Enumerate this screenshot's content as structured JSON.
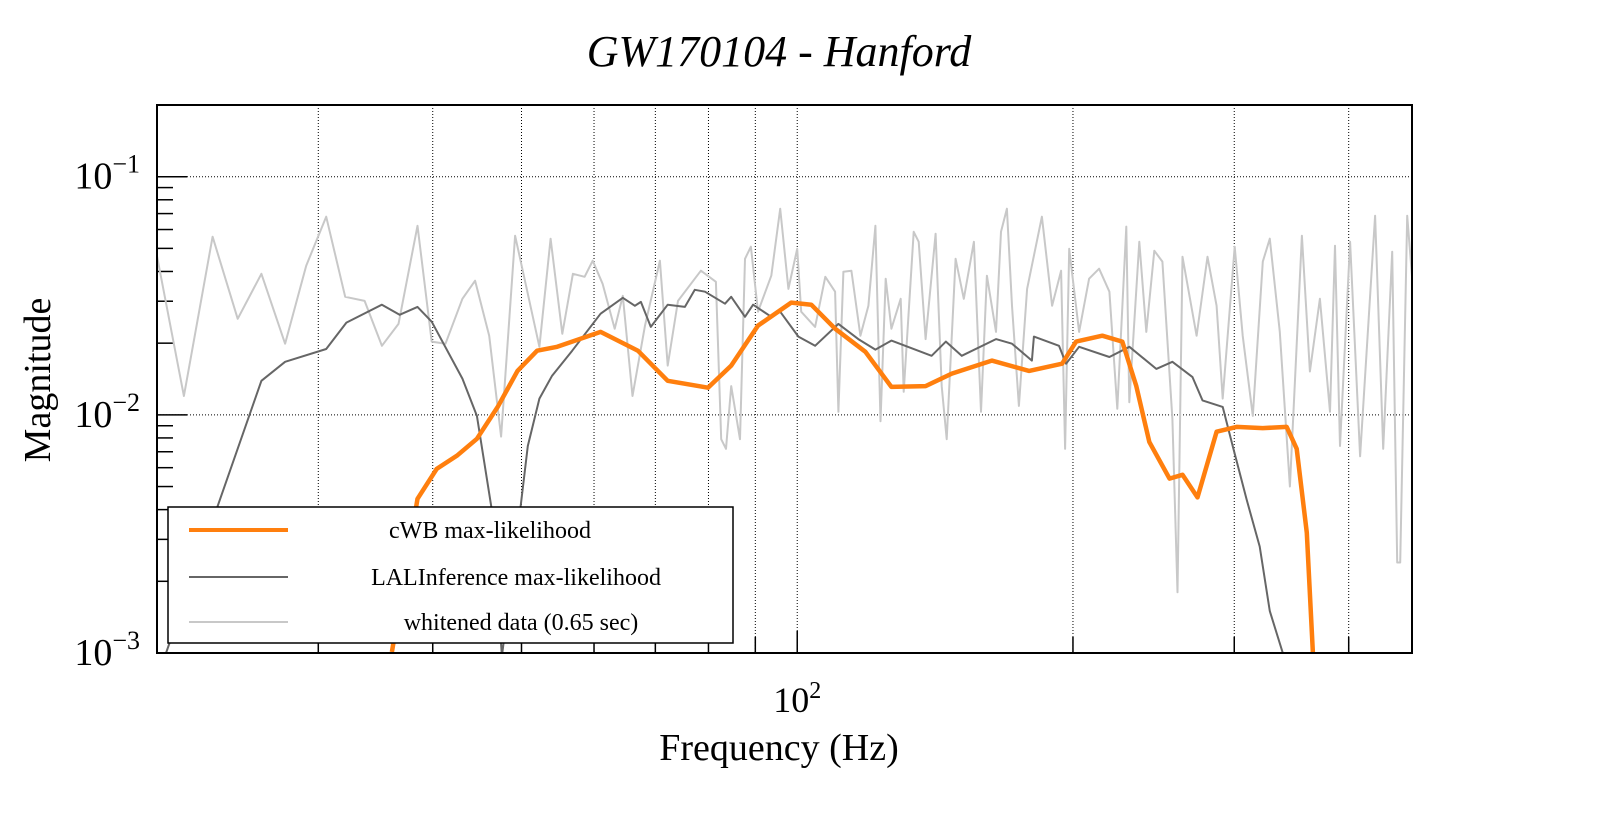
{
  "chart_data": {
    "type": "line",
    "title": "GW170104 - Hanford",
    "xlabel": "Frequency (Hz)",
    "ylabel": "Magnitude",
    "xscale": "log",
    "yscale": "log",
    "xlim": [
      20,
      469
    ],
    "ylim": [
      0.001,
      0.2
    ],
    "grid": true,
    "legend_position": "bottom-left",
    "x_major_ticks": [
      {
        "value": 100,
        "base": "10",
        "exp": "2"
      }
    ],
    "x_minor_ticks": [
      30,
      40,
      50,
      60,
      70,
      80,
      90,
      200,
      300,
      400
    ],
    "y_major_ticks": [
      {
        "value": 0.1,
        "base": "10",
        "exp": "−1"
      },
      {
        "value": 0.01,
        "base": "10",
        "exp": "−2"
      },
      {
        "value": 0.001,
        "base": "10",
        "exp": "−3"
      }
    ],
    "series": [
      {
        "name": "whitened data (0.65 sec)",
        "color": "#c8c8c8",
        "x": [
          19.9,
          21.4,
          23.0,
          24.5,
          26.0,
          27.6,
          29.1,
          30.6,
          32.1,
          33.7,
          35.2,
          36.7,
          38.5,
          39.9,
          41.3,
          43.1,
          44.5,
          46.1,
          47.5,
          49.2,
          52.3,
          53.8,
          55.4,
          56.9,
          58.6,
          59.8,
          61.3,
          63.2,
          64.5,
          66.1,
          68.2,
          70.8,
          72.2,
          74.1,
          77.0,
          78.5,
          81.5,
          82.6,
          83.6,
          84.7,
          86.6,
          87.7,
          89.0,
          90.6,
          93.7,
          95.8,
          97.8,
          100.0,
          101.0,
          104.6,
          107.3,
          110.0,
          110.9,
          112.3,
          114.6,
          117.2,
          119.6,
          121.7,
          123.3,
          124.9,
          126.7,
          129.7,
          130.7,
          134.0,
          135.7,
          138.1,
          141.6,
          143.8,
          145.6,
          148.9,
          152.0,
          155.9,
          158.7,
          161.1,
          164.8,
          166.9,
          169.4,
          171.6,
          174.6,
          178.2,
          185.0,
          189.8,
          194.1,
          196.1,
          198.1,
          203.1,
          208.3,
          213.6,
          219.2,
          223.6,
          228.7,
          230.4,
          236.3,
          240.5,
          245.4,
          250.4,
          256.8,
          260.1,
          263.4,
          272.9,
          280.5,
          287.0,
          291.4,
          300.3,
          306.4,
          314.3,
          322.3,
          328.0,
          336.4,
          345.0,
          355.6,
          362.8,
          372.1,
          381.6,
          386.5,
          391.4,
          401.4,
          411.6,
          427.5,
          436.2,
          446.2,
          451.9,
          455.3,
          463.4,
          469.2
        ],
        "y": [
          0.0513,
          0.012,
          0.056,
          0.0253,
          0.0391,
          0.0199,
          0.0423,
          0.0679,
          0.0313,
          0.0301,
          0.0195,
          0.0241,
          0.0622,
          0.0203,
          0.0199,
          0.0307,
          0.0366,
          0.0215,
          0.0081,
          0.0565,
          0.0193,
          0.0549,
          0.0219,
          0.0391,
          0.038,
          0.0444,
          0.0355,
          0.023,
          0.0316,
          0.012,
          0.0237,
          0.0444,
          0.0161,
          0.0301,
          0.0366,
          0.0403,
          0.0362,
          0.0079,
          0.0072,
          0.0132,
          0.0079,
          0.0452,
          0.0508,
          0.0271,
          0.0384,
          0.0734,
          0.0338,
          0.0498,
          0.0271,
          0.0234,
          0.038,
          0.0329,
          0.0103,
          0.0399,
          0.0403,
          0.0215,
          0.0287,
          0.0622,
          0.0094,
          0.0373,
          0.023,
          0.0307,
          0.0125,
          0.0587,
          0.0533,
          0.0208,
          0.0576,
          0.0132,
          0.0079,
          0.0452,
          0.0307,
          0.0533,
          0.0103,
          0.0384,
          0.0223,
          0.0587,
          0.0734,
          0.0287,
          0.0109,
          0.0338,
          0.0679,
          0.0287,
          0.0403,
          0.0072,
          0.0498,
          0.0223,
          0.0373,
          0.0411,
          0.0329,
          0.0106,
          0.0617,
          0.0113,
          0.0533,
          0.0223,
          0.0489,
          0.044,
          0.0096,
          0.0018,
          0.0461,
          0.0215,
          0.0461,
          0.0287,
          0.0117,
          0.0508,
          0.0215,
          0.0099,
          0.044,
          0.0549,
          0.0223,
          0.005,
          0.0565,
          0.0152,
          0.0307,
          0.0103,
          0.0513,
          0.0074,
          0.0533,
          0.0067,
          0.0686,
          0.0072,
          0.0484,
          0.0024,
          0.0024,
          0.0686,
          0.0373
        ]
      },
      {
        "name": "LALInference max-likelihood",
        "color": "#666666",
        "x": [
          20.4,
          23.1,
          26.0,
          27.6,
          30.6,
          32.2,
          35.2,
          36.8,
          38.5,
          39.9,
          43.1,
          44.7,
          46.5,
          47.6,
          49.5,
          50.8,
          52.3,
          54.0,
          56.8,
          61.0,
          64.5,
          66.5,
          67.5,
          69.2,
          72.2,
          75.4,
          77.3,
          79.3,
          83.4,
          84.7,
          87.7,
          89.5,
          93.7,
          95.8,
          100.3,
          104.6,
          110.9,
          116.6,
          121.7,
          126.7,
          140.2,
          145.3,
          151.2,
          164.8,
          171.6,
          180.4,
          181.3,
          193.1,
          196.6,
          203.1,
          219.2,
          230.5,
          246.6,
          256.8,
          270.1,
          277.0,
          291.4,
          298.8,
          309.5,
          319.8,
          328.0,
          338.9
        ],
        "y": [
          0.00097,
          0.00377,
          0.0139,
          0.0167,
          0.0189,
          0.0244,
          0.029,
          0.0263,
          0.0284,
          0.0246,
          0.0142,
          0.0099,
          0.0038,
          0.00097,
          0.0032,
          0.0074,
          0.0117,
          0.0146,
          0.0186,
          0.0266,
          0.031,
          0.0287,
          0.0298,
          0.0234,
          0.029,
          0.0284,
          0.0335,
          0.0329,
          0.0293,
          0.0313,
          0.0258,
          0.029,
          0.0258,
          0.0271,
          0.0213,
          0.0195,
          0.0241,
          0.0208,
          0.0188,
          0.0205,
          0.0177,
          0.0203,
          0.0177,
          0.0208,
          0.0199,
          0.0169,
          0.0213,
          0.0195,
          0.0164,
          0.0193,
          0.0175,
          0.0193,
          0.0156,
          0.0167,
          0.0144,
          0.0115,
          0.0108,
          0.0074,
          0.0044,
          0.0028,
          0.0015,
          0.001
        ]
      },
      {
        "name": "cWB max-likelihood",
        "color": "#ff7f0e",
        "x": [
          36.1,
          38.5,
          40.4,
          42.5,
          44.7,
          47.1,
          49.5,
          52.0,
          54.7,
          61.0,
          67.0,
          72.2,
          79.9,
          84.7,
          90.6,
          98.5,
          103.6,
          110.0,
          118.7,
          126.7,
          138.1,
          147.5,
          163.1,
          179.1,
          194.6,
          201.6,
          215.3,
          226.4,
          234.5,
          242.3,
          254.9,
          263.4,
          273.5,
          287.0,
          301.8,
          322.2,
          342.3,
          351.0,
          360.0,
          365.6
        ],
        "y": [
          0.00101,
          0.00444,
          0.00593,
          0.00673,
          0.00793,
          0.0108,
          0.0153,
          0.0186,
          0.0193,
          0.0223,
          0.0186,
          0.0139,
          0.013,
          0.0161,
          0.0237,
          0.0296,
          0.029,
          0.023,
          0.0184,
          0.0131,
          0.0132,
          0.0149,
          0.0169,
          0.0153,
          0.0164,
          0.0203,
          0.0215,
          0.0203,
          0.0132,
          0.0077,
          0.0054,
          0.0056,
          0.0045,
          0.0085,
          0.0089,
          0.0088,
          0.0089,
          0.0072,
          0.0032,
          0.001
        ]
      }
    ],
    "legend": [
      {
        "label": "cWB max-likelihood",
        "color": "#ff7f0e"
      },
      {
        "label": "LALInference max-likelihood",
        "color": "#666666"
      },
      {
        "label": "whitened data (0.65 sec)",
        "color": "#c8c8c8"
      }
    ]
  }
}
